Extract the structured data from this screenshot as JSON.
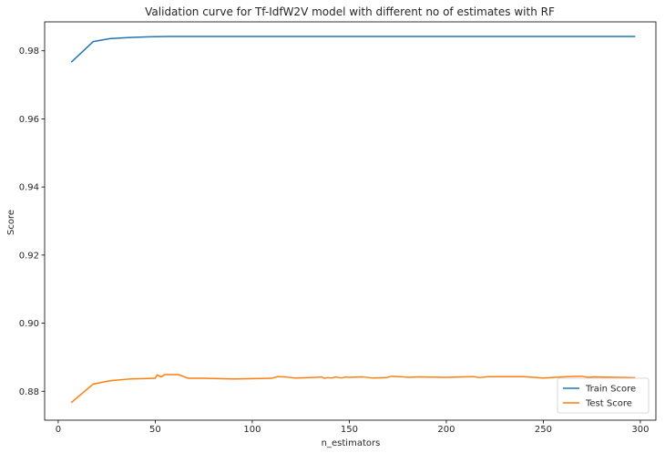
{
  "chart_data": {
    "type": "line",
    "title": "Validation curve for Tf-IdfW2V model with different no of estimates with RF",
    "xlabel": "n_estimators",
    "ylabel": "Score",
    "xlim": [
      -7,
      308
    ],
    "ylim": [
      0.8715,
      0.9885
    ],
    "xticks": [
      0,
      50,
      100,
      150,
      200,
      250,
      300
    ],
    "yticks": [
      0.88,
      0.9,
      0.92,
      0.94,
      0.96,
      0.98
    ],
    "ytick_labels": [
      "0.88",
      "0.90",
      "0.92",
      "0.94",
      "0.96",
      "0.98"
    ],
    "grid": false,
    "legend_position": "lower right",
    "series": [
      {
        "name": "Train Score",
        "color": "#1f77b4",
        "x": [
          7,
          18,
          27,
          37,
          47,
          57,
          70,
          100,
          150,
          200,
          250,
          297
        ],
        "y": [
          0.9768,
          0.9827,
          0.9836,
          0.9839,
          0.9841,
          0.9842,
          0.9842,
          0.9842,
          0.9842,
          0.9842,
          0.9842,
          0.9842
        ]
      },
      {
        "name": "Test Score",
        "color": "#ff7f0e",
        "x": [
          7,
          18,
          27,
          37,
          44,
          50,
          51,
          53,
          55,
          59,
          62,
          67,
          75,
          92,
          110,
          113,
          117,
          122,
          133,
          136,
          137,
          139,
          141,
          143,
          146,
          148,
          150,
          157,
          162,
          169,
          172,
          176,
          180,
          186,
          200,
          214,
          217,
          222,
          240,
          250,
          262,
          270,
          273,
          276,
          297
        ],
        "y": [
          0.8768,
          0.8821,
          0.8831,
          0.8836,
          0.8837,
          0.8838,
          0.8848,
          0.8842,
          0.8849,
          0.8849,
          0.8849,
          0.8838,
          0.8838,
          0.8836,
          0.8838,
          0.8843,
          0.8842,
          0.8839,
          0.8841,
          0.8842,
          0.8838,
          0.884,
          0.8839,
          0.8842,
          0.8839,
          0.8842,
          0.8841,
          0.8842,
          0.8839,
          0.884,
          0.8844,
          0.8843,
          0.8841,
          0.8842,
          0.8841,
          0.8843,
          0.884,
          0.8843,
          0.8843,
          0.8839,
          0.8843,
          0.8844,
          0.8841,
          0.8842,
          0.884
        ]
      }
    ]
  }
}
